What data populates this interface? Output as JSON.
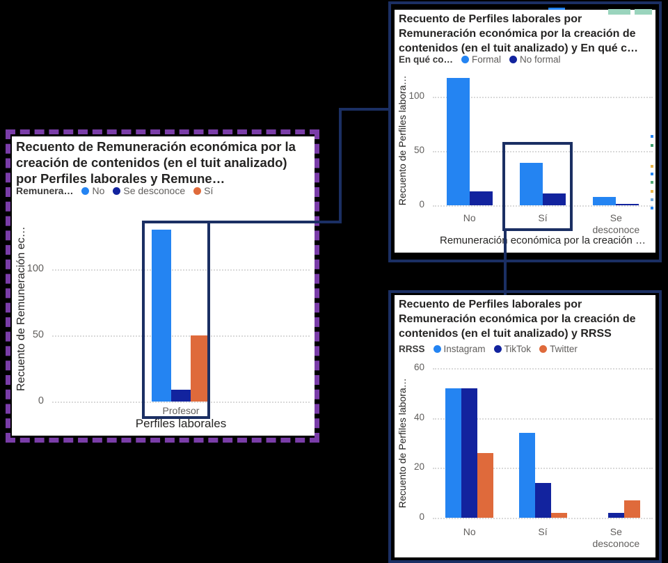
{
  "page": {
    "background": "#000000"
  },
  "colors": {
    "annotation_navy": "#1B2F63",
    "highlight_purple": "#7A3DA8",
    "series_blue": "#2484F2",
    "series_darkblue": "#12239E",
    "series_orange": "#DF6A3B",
    "title_text": "#252423",
    "axis_text": "#605E5C",
    "gridline": "#D9D9D9",
    "card_background": "#FFFFFF"
  },
  "chart_data": [
    {
      "id": "remuneracion-por-perfiles",
      "type": "bar",
      "title": "Recuento de Remuneración económica por la creación de contenidos (en el tuit analizado) por Perfiles laborales y Remune…",
      "legend_title": "Remunera…",
      "legend_position": "top",
      "grid": "dotted-horizontal",
      "categories": [
        "Profesor"
      ],
      "series": [
        {
          "name": "No",
          "color": "#2484F2",
          "values": [
            130
          ]
        },
        {
          "name": "Se desconoce",
          "color": "#12239E",
          "values": [
            9
          ]
        },
        {
          "name": "Sí",
          "color": "#DF6A3B",
          "values": [
            50
          ]
        }
      ],
      "xlabel": "Perfiles laborales",
      "ylabel": "Recuento de Remuneración ec…",
      "yticks": [
        0,
        50,
        100
      ],
      "ylim": [
        0,
        140
      ]
    },
    {
      "id": "perfiles-por-remuneracion-y-formal",
      "type": "bar",
      "title": "Recuento de Perfiles laborales por Remuneración económica por la creación de contenidos (en el tuit analizado) y En qué c…",
      "legend_title": "En qué co…",
      "legend_position": "top",
      "grid": "dotted-horizontal",
      "categories": [
        "No",
        "Sí",
        "Se desconoce"
      ],
      "series": [
        {
          "name": "Formal",
          "color": "#2484F2",
          "values": [
            117,
            39,
            8
          ]
        },
        {
          "name": "No formal",
          "color": "#12239E",
          "values": [
            13,
            11,
            1
          ]
        }
      ],
      "xlabel": "Remuneración económica por la creación …",
      "ylabel": "Recuento de Perfiles labora…",
      "yticks": [
        0,
        50,
        100
      ],
      "ylim": [
        0,
        120
      ]
    },
    {
      "id": "perfiles-por-remuneracion-y-rrss",
      "type": "bar",
      "title": "Recuento de Perfiles laborales por Remuneración económica por la creación de contenidos (en el tuit analizado) y RRSS",
      "legend_title": "RRSS",
      "legend_position": "top",
      "grid": "dotted-horizontal",
      "categories": [
        "No",
        "Sí",
        "Se desconoce"
      ],
      "series": [
        {
          "name": "Instagram",
          "color": "#2484F2",
          "values": [
            52,
            34,
            0
          ]
        },
        {
          "name": "TikTok",
          "color": "#12239E",
          "values": [
            52,
            14,
            2
          ]
        },
        {
          "name": "Twitter",
          "color": "#DF6A3B",
          "values": [
            26,
            2,
            7
          ]
        }
      ],
      "xlabel": "",
      "ylabel": "Recuento de Perfiles labora…",
      "yticks": [
        0,
        20,
        40,
        60
      ],
      "ylim": [
        0,
        60
      ]
    }
  ],
  "annotations": {
    "highlighted_category_left_chart": "Profesor",
    "highlighted_category_top_right_chart": "Sí"
  },
  "artifacts": {
    "top_strip_colors": [
      "#2484F2",
      "#9AD4BD",
      "#9AD4BD"
    ],
    "edge_speck_colors": [
      "#2484F2",
      "#3E9E6E",
      "#E8B54A",
      "#2484F2",
      "#52A876",
      "#E8B54A",
      "#6FA8DC",
      "#2484F2"
    ]
  }
}
